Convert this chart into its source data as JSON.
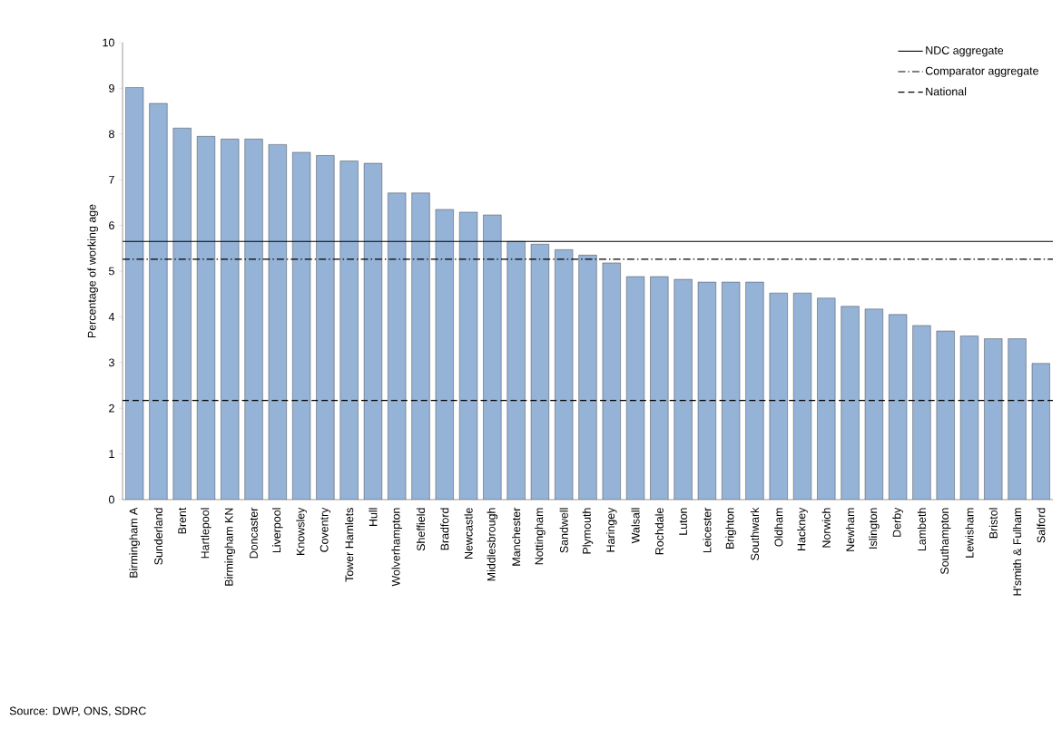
{
  "chart_data": {
    "type": "bar",
    "ylabel": "Percentage of working age",
    "categories": [
      "Birmingham A",
      "Sunderland",
      "Brent",
      "Hartlepool",
      "Birmingham KN",
      "Doncaster",
      "Liverpool",
      "Knowsley",
      "Coventry",
      "Tower Hamlets",
      "Hull",
      "Wolverhampton",
      "Sheffield",
      "Bradford",
      "Newcastle",
      "Middlesbrough",
      "Manchester",
      "Nottingham",
      "Sandwell",
      "Plymouth",
      "Haringey",
      "Walsall",
      "Rochdale",
      "Luton",
      "Leicester",
      "Brighton",
      "Southwark",
      "Oldham",
      "Hackney",
      "Norwich",
      "Newham",
      "Islington",
      "Derby",
      "Lambeth",
      "Southampton",
      "Lewisham",
      "Bristol",
      "H'smith & Fulham",
      "Salford"
    ],
    "values": [
      9.02,
      8.67,
      8.13,
      7.95,
      7.89,
      7.89,
      7.77,
      7.6,
      7.53,
      7.41,
      7.36,
      6.71,
      6.71,
      6.35,
      6.29,
      6.23,
      5.65,
      5.59,
      5.47,
      5.35,
      5.18,
      4.88,
      4.88,
      4.82,
      4.76,
      4.76,
      4.76,
      4.52,
      4.52,
      4.41,
      4.23,
      4.17,
      4.05,
      3.81,
      3.69,
      3.58,
      3.52,
      3.52,
      2.98
    ],
    "color": "#95b3d7",
    "ylim": [
      0,
      10
    ],
    "yticks": [
      0,
      1,
      2,
      3,
      4,
      5,
      6,
      7,
      8,
      9,
      10
    ],
    "ref_lines": [
      {
        "axis": "y",
        "value": 5.65,
        "label": "NDC aggregate",
        "color": "#000000",
        "line_style": "solid"
      },
      {
        "axis": "y",
        "value": 5.26,
        "label": "Comparator aggregate",
        "color": "#000000",
        "line_style": "dashdot"
      },
      {
        "axis": "y",
        "value": 2.17,
        "label": "National",
        "color": "#000000",
        "line_style": "dashed"
      }
    ],
    "legend": "top right",
    "annotations": [
      "Source: DWP, ONS, SDRC"
    ]
  }
}
